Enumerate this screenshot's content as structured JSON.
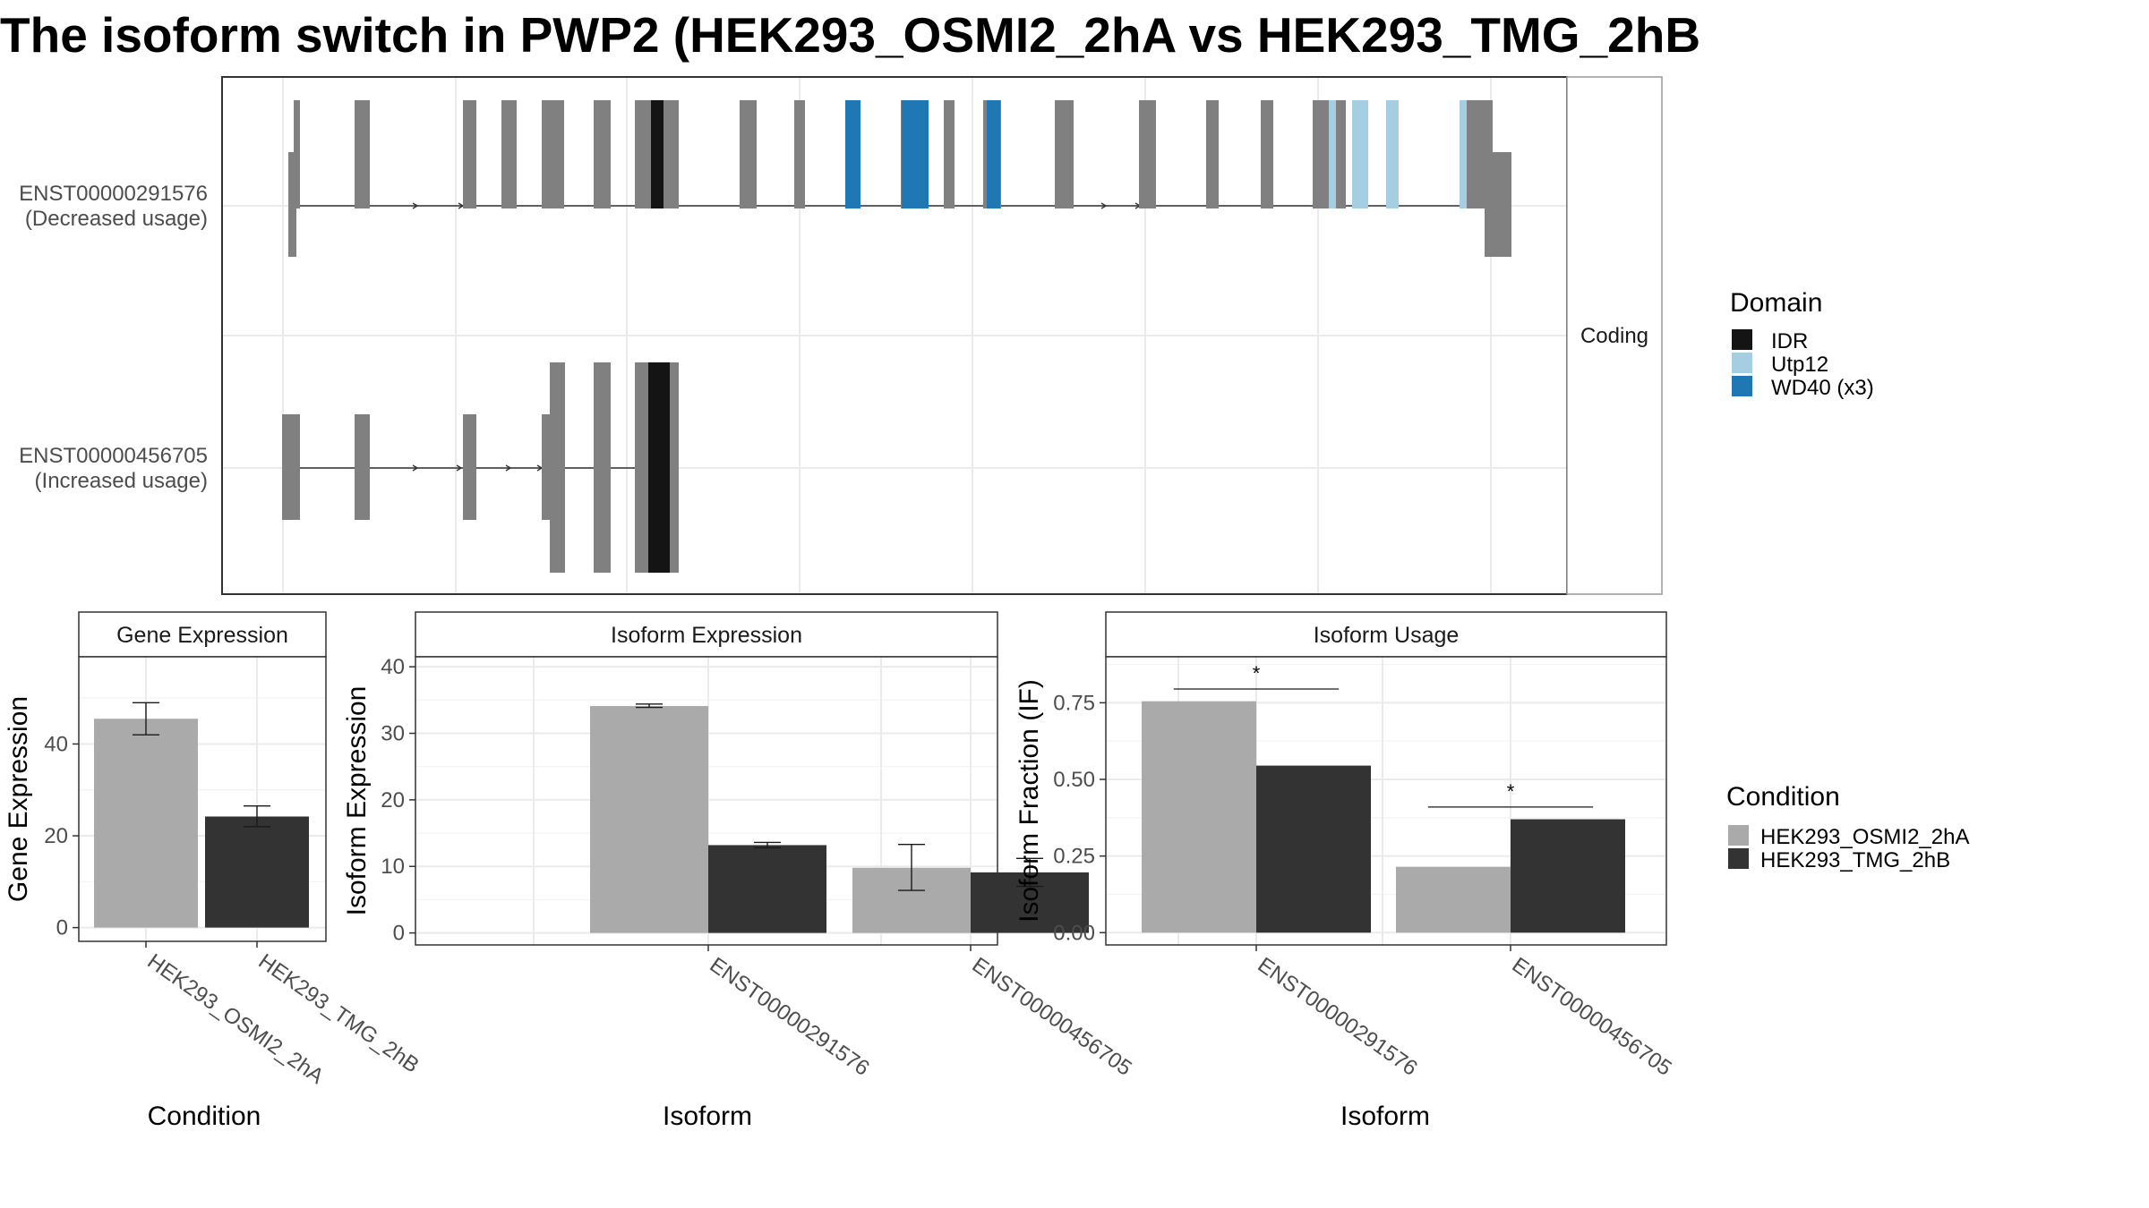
{
  "title": "The isoform switch in PWP2 (HEK293_OSMI2_2hA vs HEK293_TMG_2hB",
  "colors": {
    "condition_a": "#aaaaaa",
    "condition_b": "#333333",
    "exon": "#808080",
    "IDR": "#141414",
    "Utp12": "#a6cee3",
    "WD40": "#1f78b4",
    "panel_border": "#333333",
    "strip_border": "#999999",
    "grid": "#ebebeb",
    "axis_text": "#4d4d4d"
  },
  "structure": {
    "strip_label": "Coding",
    "transcripts": [
      {
        "id": "ENST00000291576",
        "usage": "(Decreased usage)"
      },
      {
        "id": "ENST00000456705",
        "usage": "(Increased usage)"
      }
    ],
    "domain_legend": {
      "title": "Domain",
      "items": [
        {
          "label": "IDR",
          "color_key": "IDR"
        },
        {
          "label": "Utp12",
          "color_key": "Utp12"
        },
        {
          "label": "WD40 (x3)",
          "color_key": "WD40"
        }
      ]
    }
  },
  "condition_legend": {
    "title": "Condition",
    "items": [
      {
        "label": "HEK293_OSMI2_2hA",
        "color_key": "condition_a"
      },
      {
        "label": "HEK293_TMG_2hB",
        "color_key": "condition_b"
      }
    ]
  },
  "chart_data": [
    {
      "type": "bar",
      "strip": "Gene Expression",
      "xlabel": "Condition",
      "ylabel": "Gene Expression",
      "ylim": [
        -3,
        59
      ],
      "yticks": [
        0,
        20,
        40
      ],
      "categories": [
        "HEK293_OSMI2_2hA",
        "HEK293_TMG_2hB"
      ],
      "values": [
        45.5,
        24.2
      ],
      "error_low": [
        42.0,
        22.0
      ],
      "error_high": [
        49.0,
        26.5
      ]
    },
    {
      "type": "bar",
      "strip": "Isoform Expression",
      "xlabel": "Isoform",
      "ylabel": "Isoform Expression",
      "ylim": [
        -1.8,
        41.5
      ],
      "yticks": [
        0,
        10,
        20,
        30,
        40
      ],
      "categories": [
        "ENST00000291576",
        "ENST00000456705"
      ],
      "series": [
        {
          "name": "HEK293_OSMI2_2hA",
          "values": [
            34.1,
            9.8
          ],
          "error_low": [
            33.9,
            6.4
          ],
          "error_high": [
            34.4,
            13.3
          ]
        },
        {
          "name": "HEK293_TMG_2hB",
          "values": [
            13.2,
            9.1
          ],
          "error_low": [
            12.8,
            7.0
          ],
          "error_high": [
            13.6,
            11.2
          ]
        }
      ]
    },
    {
      "type": "bar",
      "strip": "Isoform Usage",
      "xlabel": "Isoform",
      "ylabel": "Isoform Fraction (IF)",
      "ylim": [
        -0.04,
        0.9
      ],
      "yticks": [
        0.0,
        0.25,
        0.5,
        0.75
      ],
      "ytick_labels": [
        "0.00",
        "0.25",
        "0.50",
        "0.75"
      ],
      "categories": [
        "ENST00000291576",
        "ENST00000456705"
      ],
      "series": [
        {
          "name": "HEK293_OSMI2_2hA",
          "values": [
            0.755,
            0.215
          ]
        },
        {
          "name": "HEK293_TMG_2hB",
          "values": [
            0.545,
            0.37
          ]
        }
      ],
      "significance": [
        {
          "label": "*",
          "y": 0.795
        },
        {
          "label": "*",
          "y": 0.41
        }
      ]
    }
  ]
}
